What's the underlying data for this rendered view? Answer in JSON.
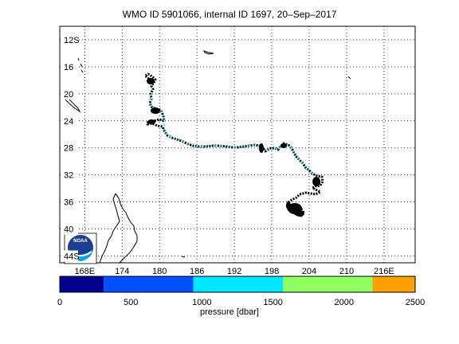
{
  "title": "WMO ID 5901066, internal ID 1697, 20–Sep–2017",
  "map": {
    "lat_labels": [
      "12S",
      "16",
      "20",
      "24",
      "28",
      "32",
      "36",
      "40",
      "44S"
    ],
    "lat_values": [
      -12,
      -16,
      -20,
      -24,
      -28,
      -32,
      -36,
      -40,
      -44
    ],
    "lon_labels": [
      "168E",
      "174",
      "180",
      "186",
      "192",
      "198",
      "204",
      "210",
      "216E"
    ],
    "lon_values": [
      168,
      174,
      180,
      186,
      192,
      198,
      204,
      210,
      216
    ],
    "lon_range": [
      164,
      221
    ],
    "lat_range": [
      -10,
      -45
    ],
    "grid": "dotted",
    "colors": {
      "track": "#000000",
      "track_highlight": "#00e5ee",
      "land": "#000000"
    },
    "logo": "noaa-logo"
  },
  "colorbar": {
    "ticks": [
      "0",
      "500",
      "1000",
      "1500",
      "2000",
      "2500"
    ],
    "tick_values": [
      0,
      500,
      1000,
      1500,
      2000,
      2500
    ],
    "label": "pressure [dbar]",
    "segments": [
      {
        "from": 0,
        "to": 310,
        "color": "#00008f"
      },
      {
        "from": 310,
        "to": 940,
        "color": "#0050ff"
      },
      {
        "from": 940,
        "to": 1570,
        "color": "#00e8ff"
      },
      {
        "from": 1570,
        "to": 2200,
        "color": "#90ff60"
      },
      {
        "from": 2200,
        "to": 2500,
        "color": "#ffa000"
      }
    ]
  },
  "chart_data": {
    "type": "scatter",
    "x_axis": "longitude (°E)",
    "y_axis": "latitude (°S)",
    "series_points": [
      [
        180.2,
        -17.8
      ],
      [
        180.0,
        -18.4
      ],
      [
        180.5,
        -18.9
      ],
      [
        180.1,
        -19.6
      ],
      [
        180.4,
        -20.2
      ],
      [
        179.6,
        -21.2
      ],
      [
        180.8,
        -22.6
      ],
      [
        181.5,
        -23.4
      ],
      [
        180.2,
        -24.0
      ],
      [
        181.8,
        -24.6
      ],
      [
        182.3,
        -25.4
      ],
      [
        183.2,
        -26.2
      ],
      [
        184.6,
        -26.6
      ],
      [
        186.0,
        -27.0
      ],
      [
        187.0,
        -27.6
      ],
      [
        188.5,
        -28.0
      ],
      [
        190.0,
        -28.0
      ],
      [
        191.5,
        -27.9
      ],
      [
        193.0,
        -27.9
      ],
      [
        195.0,
        -27.6
      ],
      [
        197.0,
        -27.7
      ],
      [
        198.8,
        -27.4
      ],
      [
        199.7,
        -27.8
      ],
      [
        200.6,
        -27.3
      ],
      [
        201.2,
        -27.6
      ],
      [
        202.0,
        -28.0
      ],
      [
        202.3,
        -29.2
      ],
      [
        203.1,
        -30.3
      ],
      [
        204.0,
        -30.9
      ],
      [
        205.3,
        -31.5
      ],
      [
        205.7,
        -32.6
      ],
      [
        204.3,
        -33.1
      ],
      [
        203.1,
        -34.0
      ],
      [
        202.7,
        -35.6
      ],
      [
        202.3,
        -36.5
      ],
      [
        202.8,
        -37.3
      ],
      [
        203.0,
        -36.8
      ]
    ]
  }
}
